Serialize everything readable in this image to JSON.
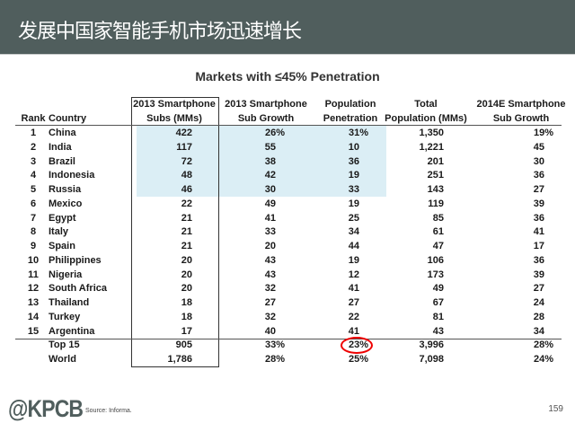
{
  "header": {
    "title": "发展中国家智能手机市场迅速增长",
    "background": "#505e5d"
  },
  "table": {
    "title": "Markets with ≤45% Penetration",
    "highlight_color": "#dbeef5",
    "headers": {
      "rank": "Rank",
      "country": "Country",
      "subs": [
        "2013 Smartphone",
        "Subs (MMs)"
      ],
      "growth": [
        "2013 Smartphone",
        "Sub Growth"
      ],
      "penetration": [
        "Population",
        "Penetration"
      ],
      "population": [
        "Total",
        "Population (MMs)"
      ],
      "growth_2014": [
        "2014E Smartphone",
        "Sub Growth"
      ]
    },
    "rows": [
      {
        "rank": "1",
        "country": "China",
        "subs": "422",
        "growth": "26%",
        "penetration": "31%",
        "population": "1,350",
        "growth_2014": "19%",
        "highlighted": true
      },
      {
        "rank": "2",
        "country": "India",
        "subs": "117",
        "growth": "55",
        "penetration": "10",
        "population": "1,221",
        "growth_2014": "45",
        "highlighted": true
      },
      {
        "rank": "3",
        "country": "Brazil",
        "subs": "72",
        "growth": "38",
        "penetration": "36",
        "population": "201",
        "growth_2014": "30",
        "highlighted": true
      },
      {
        "rank": "4",
        "country": "Indonesia",
        "subs": "48",
        "growth": "42",
        "penetration": "19",
        "population": "251",
        "growth_2014": "36",
        "highlighted": true
      },
      {
        "rank": "5",
        "country": "Russia",
        "subs": "46",
        "growth": "30",
        "penetration": "33",
        "population": "143",
        "growth_2014": "27",
        "highlighted": true
      },
      {
        "rank": "6",
        "country": "Mexico",
        "subs": "22",
        "growth": "49",
        "penetration": "19",
        "population": "119",
        "growth_2014": "39"
      },
      {
        "rank": "7",
        "country": "Egypt",
        "subs": "21",
        "growth": "41",
        "penetration": "25",
        "population": "85",
        "growth_2014": "36"
      },
      {
        "rank": "8",
        "country": "Italy",
        "subs": "21",
        "growth": "33",
        "penetration": "34",
        "population": "61",
        "growth_2014": "41"
      },
      {
        "rank": "9",
        "country": "Spain",
        "subs": "21",
        "growth": "20",
        "penetration": "44",
        "population": "47",
        "growth_2014": "17"
      },
      {
        "rank": "10",
        "country": "Philippines",
        "subs": "20",
        "growth": "43",
        "penetration": "19",
        "population": "106",
        "growth_2014": "36"
      },
      {
        "rank": "11",
        "country": "Nigeria",
        "subs": "20",
        "growth": "43",
        "penetration": "12",
        "population": "173",
        "growth_2014": "39"
      },
      {
        "rank": "12",
        "country": "South Africa",
        "subs": "20",
        "growth": "32",
        "penetration": "41",
        "population": "49",
        "growth_2014": "27"
      },
      {
        "rank": "13",
        "country": "Thailand",
        "subs": "18",
        "growth": "27",
        "penetration": "27",
        "population": "67",
        "growth_2014": "24"
      },
      {
        "rank": "14",
        "country": "Turkey",
        "subs": "18",
        "growth": "32",
        "penetration": "22",
        "population": "81",
        "growth_2014": "28"
      },
      {
        "rank": "15",
        "country": "Argentina",
        "subs": "17",
        "growth": "40",
        "penetration": "41",
        "population": "43",
        "growth_2014": "34"
      }
    ],
    "totals": [
      {
        "rank": "",
        "country": "Top 15",
        "subs": "905",
        "growth": "33%",
        "penetration": "23%",
        "population": "3,996",
        "growth_2014": "28%",
        "circled": "penetration",
        "circle_color": "#e00000"
      },
      {
        "rank": "",
        "country": "World",
        "subs": "1,786",
        "growth": "28%",
        "penetration": "25%",
        "population": "7,098",
        "growth_2014": "24%"
      }
    ]
  },
  "footer": {
    "logo": "@KPCB",
    "source": "Source: Informa.",
    "page_number": "159"
  }
}
